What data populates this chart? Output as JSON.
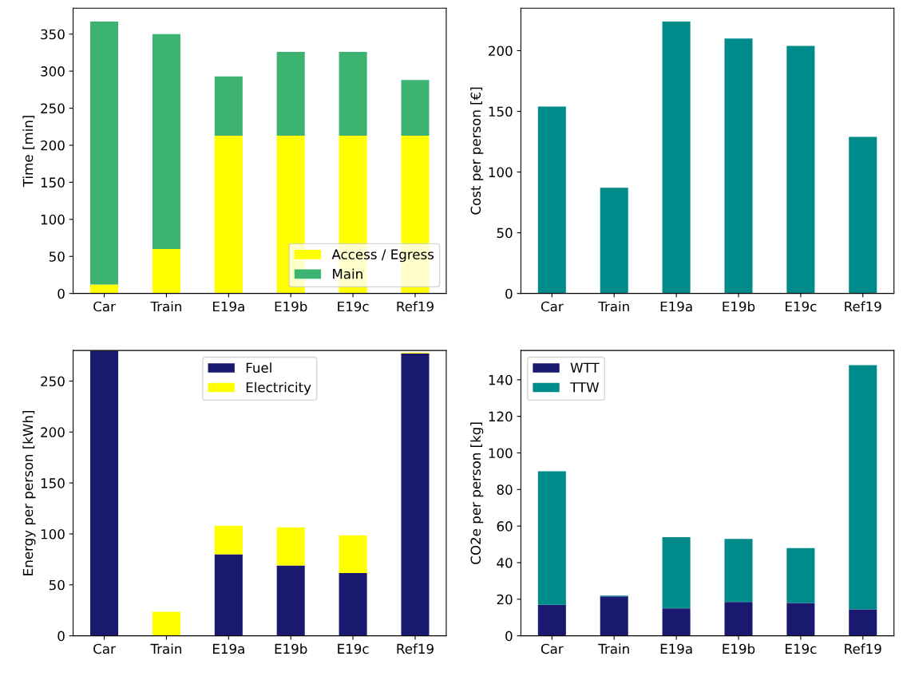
{
  "chart_data": [
    {
      "type": "bar",
      "stacked": true,
      "ylabel": "Time [min]",
      "categories": [
        "Car",
        "Train",
        "E19a",
        "E19b",
        "E19c",
        "Ref19"
      ],
      "ylim": [
        0,
        385
      ],
      "yticks": [
        0,
        50,
        100,
        150,
        200,
        250,
        300,
        350
      ],
      "legend": "bottom right",
      "series": [
        {
          "name": "Access / Egress",
          "color": "#ffff00",
          "values": [
            12,
            60,
            213,
            213,
            213,
            213
          ]
        },
        {
          "name": "Main",
          "color": "#3cb371",
          "values": [
            355,
            290,
            80,
            113,
            113,
            75
          ]
        }
      ]
    },
    {
      "type": "bar",
      "ylabel": "Cost per person [€]",
      "categories": [
        "Car",
        "Train",
        "E19a",
        "E19b",
        "E19c",
        "Ref19"
      ],
      "ylim": [
        0,
        235
      ],
      "yticks": [
        0,
        50,
        100,
        150,
        200
      ],
      "series": [
        {
          "color": "#008b8b",
          "values": [
            154,
            87,
            224,
            210,
            204,
            129
          ]
        }
      ]
    },
    {
      "type": "bar",
      "stacked": true,
      "ylabel": "Energy per person [kWh]",
      "categories": [
        "Car",
        "Train",
        "E19a",
        "E19b",
        "E19c",
        "Ref19"
      ],
      "ylim": [
        0,
        280
      ],
      "yticks": [
        0,
        50,
        100,
        150,
        200,
        250
      ],
      "legend": "top",
      "series": [
        {
          "name": "Fuel",
          "color": "#191970",
          "values": [
            280,
            0,
            80,
            69,
            61.5,
            277
          ]
        },
        {
          "name": "Electricity",
          "color": "#ffff00",
          "values": [
            0,
            23.5,
            28,
            37.5,
            37,
            1
          ]
        }
      ]
    },
    {
      "type": "bar",
      "stacked": true,
      "ylabel": "CO2e per person [kg]",
      "categories": [
        "Car",
        "Train",
        "E19a",
        "E19b",
        "E19c",
        "Ref19"
      ],
      "ylim": [
        0,
        156
      ],
      "yticks": [
        0,
        20,
        40,
        60,
        80,
        100,
        120,
        140
      ],
      "legend": "top left",
      "series": [
        {
          "name": "WTT",
          "color": "#191970",
          "values": [
            17,
            21.5,
            15,
            18.5,
            18,
            14.5
          ]
        },
        {
          "name": "TTW",
          "color": "#008b8b",
          "values": [
            73,
            0.5,
            39,
            34.5,
            30,
            133.5
          ]
        }
      ]
    }
  ]
}
